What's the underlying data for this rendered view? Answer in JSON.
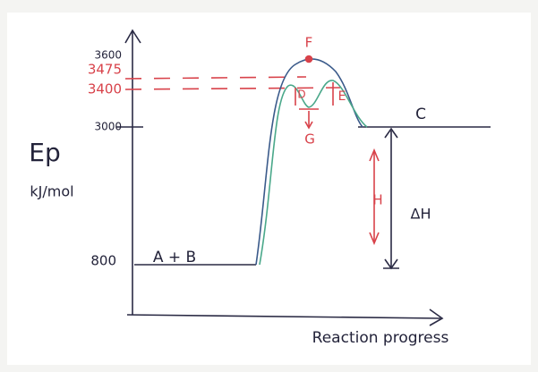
{
  "axis": {
    "y_label": "Ep",
    "y_unit": "kJ/mol",
    "x_label": "Reaction progress",
    "ticks": [
      "3600",
      "3475",
      "3400",
      "3000",
      "800"
    ]
  },
  "labels": {
    "reactants": "A + B",
    "products": "C",
    "peak": "F",
    "intermediate": "G",
    "first_barrier": "D",
    "second_barrier": "E",
    "h_arrow": "H",
    "delta_h": "ΔH"
  }
}
